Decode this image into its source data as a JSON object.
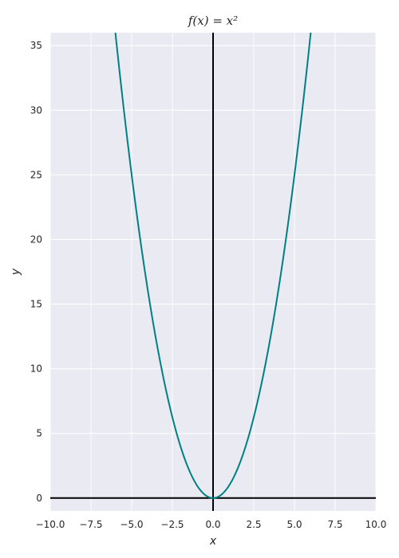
{
  "chart_data": {
    "type": "line",
    "title": "f(x) = x²",
    "xlabel": "x",
    "ylabel": "y",
    "xlim": [
      -10,
      10
    ],
    "ylim": [
      -1,
      36
    ],
    "x_ticks": [
      -10,
      -7.5,
      -5,
      -2.5,
      0,
      2.5,
      5,
      7.5,
      10
    ],
    "x_tick_labels": [
      "−10.0",
      "−7.5",
      "−5.0",
      "−2.5",
      "0.0",
      "2.5",
      "5.0",
      "7.5",
      "10.0"
    ],
    "y_ticks": [
      0,
      5,
      10,
      15,
      20,
      25,
      30,
      35
    ],
    "y_tick_labels": [
      "0",
      "5",
      "10",
      "15",
      "20",
      "25",
      "30",
      "35"
    ],
    "grid": true,
    "series": [
      {
        "function": "x^2",
        "color": "#008080",
        "x": [
          -6.0,
          -5.5,
          -5.0,
          -4.5,
          -4.0,
          -3.5,
          -3.0,
          -2.5,
          -2.0,
          -1.5,
          -1.0,
          -0.5,
          0.0,
          0.5,
          1.0,
          1.5,
          2.0,
          2.5,
          3.0,
          3.5,
          4.0,
          4.5,
          5.0,
          5.5,
          6.0
        ],
        "y": [
          36.0,
          30.25,
          25.0,
          20.25,
          16.0,
          12.25,
          9.0,
          6.25,
          4.0,
          2.25,
          1.0,
          0.25,
          0.0,
          0.25,
          1.0,
          2.25,
          4.0,
          6.25,
          9.0,
          12.25,
          16.0,
          20.25,
          25.0,
          30.25,
          36.0
        ]
      }
    ],
    "reference_lines": [
      {
        "orientation": "horizontal",
        "value": 0,
        "color": "#000000"
      },
      {
        "orientation": "vertical",
        "value": 0,
        "color": "#000000"
      }
    ],
    "colors": {
      "plot_background": "#EAEAF2",
      "grid": "#FFFFFF"
    }
  }
}
